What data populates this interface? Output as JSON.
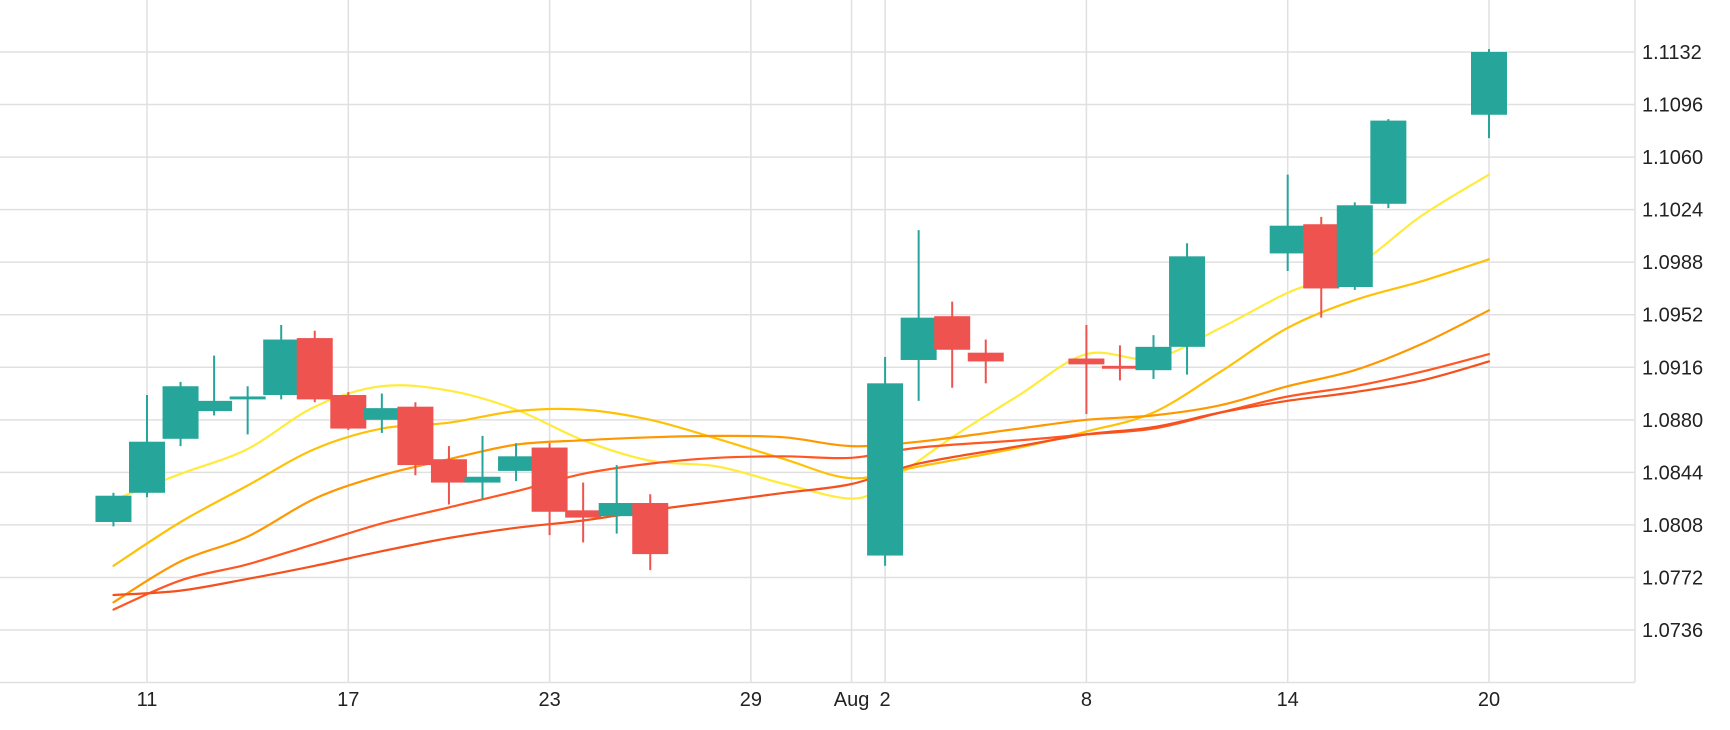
{
  "colors": {
    "up": "#26a69a",
    "down": "#ef5350",
    "grid": "#e0e0e0",
    "background": "#ffffff",
    "text": "#222222",
    "ma_colors": [
      "#ffeb3b",
      "#ffc107",
      "#ff9800",
      "#ff5722",
      "#f4511e"
    ]
  },
  "chart_data": {
    "type": "candlestick",
    "title": "",
    "xlabel": "",
    "ylabel": "",
    "ylim": [
      1.07,
      1.1157
    ],
    "grid": true,
    "legend": "none",
    "y_ticks": [
      "1.0736",
      "1.0772",
      "1.0808",
      "1.0844",
      "1.0880",
      "1.0916",
      "1.0952",
      "1.0988",
      "1.1024",
      "1.1060",
      "1.1096",
      "1.1132"
    ],
    "x_ticks": [
      {
        "label": "11",
        "date": "2023-07-11"
      },
      {
        "label": "17",
        "date": "2023-07-17"
      },
      {
        "label": "23",
        "date": "2023-07-23"
      },
      {
        "label": "29",
        "date": "2023-07-29"
      },
      {
        "label": "Aug",
        "date": "2023-08-01"
      },
      {
        "label": "2",
        "date": "2023-08-02"
      },
      {
        "label": "8",
        "date": "2023-08-08"
      },
      {
        "label": "14",
        "date": "2023-08-14"
      },
      {
        "label": "20",
        "date": "2023-08-20"
      }
    ],
    "candles": [
      {
        "date": "2023-07-10",
        "open": 1.081,
        "high": 1.083,
        "low": 1.0807,
        "close": 1.0828
      },
      {
        "date": "2023-07-11",
        "open": 1.083,
        "high": 1.0897,
        "low": 1.0827,
        "close": 1.0865
      },
      {
        "date": "2023-07-12",
        "open": 1.0867,
        "high": 1.0906,
        "low": 1.0862,
        "close": 1.0903
      },
      {
        "date": "2023-07-13",
        "open": 1.0886,
        "high": 1.0924,
        "low": 1.0883,
        "close": 1.0893
      },
      {
        "date": "2023-07-14",
        "open": 1.0894,
        "high": 1.0903,
        "low": 1.087,
        "close": 1.0896
      },
      {
        "date": "2023-07-15",
        "open": 1.0897,
        "high": 1.0945,
        "low": 1.0894,
        "close": 1.0935
      },
      {
        "date": "2023-07-16",
        "open": 1.0936,
        "high": 1.0941,
        "low": 1.0892,
        "close": 1.0894
      },
      {
        "date": "2023-07-17",
        "open": 1.0897,
        "high": 1.0899,
        "low": 1.0873,
        "close": 1.0874
      },
      {
        "date": "2023-07-18",
        "open": 1.088,
        "high": 1.0898,
        "low": 1.0871,
        "close": 1.0888
      },
      {
        "date": "2023-07-19",
        "open": 1.0889,
        "high": 1.0892,
        "low": 1.0842,
        "close": 1.0849
      },
      {
        "date": "2023-07-20",
        "open": 1.0853,
        "high": 1.0862,
        "low": 1.0822,
        "close": 1.0837
      },
      {
        "date": "2023-07-21",
        "open": 1.0837,
        "high": 1.0869,
        "low": 1.0826,
        "close": 1.0841
      },
      {
        "date": "2023-07-22",
        "open": 1.0845,
        "high": 1.0864,
        "low": 1.0838,
        "close": 1.0855
      },
      {
        "date": "2023-07-23",
        "open": 1.0861,
        "high": 1.0864,
        "low": 1.0801,
        "close": 1.0817
      },
      {
        "date": "2023-07-24",
        "open": 1.0818,
        "high": 1.0837,
        "low": 1.0796,
        "close": 1.0813
      },
      {
        "date": "2023-07-25",
        "open": 1.0814,
        "high": 1.0849,
        "low": 1.0802,
        "close": 1.0823
      },
      {
        "date": "2023-07-26",
        "open": 1.0823,
        "high": 1.0829,
        "low": 1.0777,
        "close": 1.0788
      },
      {
        "date": "2023-08-02",
        "open": 1.0787,
        "high": 1.0923,
        "low": 1.078,
        "close": 1.0905
      },
      {
        "date": "2023-08-03",
        "open": 1.0921,
        "high": 1.101,
        "low": 1.0893,
        "close": 1.095
      },
      {
        "date": "2023-08-04",
        "open": 1.0951,
        "high": 1.0961,
        "low": 1.0902,
        "close": 1.0928
      },
      {
        "date": "2023-08-05",
        "open": 1.0926,
        "high": 1.0935,
        "low": 1.0905,
        "close": 1.092
      },
      {
        "date": "2023-08-08",
        "open": 1.0922,
        "high": 1.0945,
        "low": 1.0884,
        "close": 1.0918
      },
      {
        "date": "2023-08-09",
        "open": 1.0917,
        "high": 1.0931,
        "low": 1.0907,
        "close": 1.0915
      },
      {
        "date": "2023-08-10",
        "open": 1.0914,
        "high": 1.0938,
        "low": 1.0908,
        "close": 1.093
      },
      {
        "date": "2023-08-11",
        "open": 1.093,
        "high": 1.1001,
        "low": 1.0911,
        "close": 1.0992
      },
      {
        "date": "2023-08-14",
        "open": 1.0994,
        "high": 1.1048,
        "low": 1.0982,
        "close": 1.1013
      },
      {
        "date": "2023-08-15",
        "open": 1.1014,
        "high": 1.1019,
        "low": 1.095,
        "close": 1.097
      },
      {
        "date": "2023-08-16",
        "open": 1.0971,
        "high": 1.1029,
        "low": 1.0969,
        "close": 1.1027
      },
      {
        "date": "2023-08-17",
        "open": 1.1028,
        "high": 1.1086,
        "low": 1.1025,
        "close": 1.1085
      },
      {
        "date": "2023-08-20",
        "open": 1.1089,
        "high": 1.1134,
        "low": 1.1073,
        "close": 1.1132
      }
    ],
    "moving_averages": [
      {
        "color": "#ffeb3b",
        "points": [
          [
            "2023-07-10",
            1.0825
          ],
          [
            "2023-07-12",
            1.0843
          ],
          [
            "2023-07-14",
            1.086
          ],
          [
            "2023-07-16",
            1.0889
          ],
          [
            "2023-07-18",
            1.0903
          ],
          [
            "2023-07-20",
            1.09
          ],
          [
            "2023-07-22",
            1.0887
          ],
          [
            "2023-07-24",
            1.0866
          ],
          [
            "2023-07-26",
            1.0852
          ],
          [
            "2023-07-28",
            1.0848
          ],
          [
            "2023-07-30",
            1.0836
          ],
          [
            "2023-08-01",
            1.0826
          ],
          [
            "2023-08-02",
            1.0836
          ],
          [
            "2023-08-04",
            1.0868
          ],
          [
            "2023-08-06",
            1.0897
          ],
          [
            "2023-08-08",
            1.0925
          ],
          [
            "2023-08-10",
            1.0922
          ],
          [
            "2023-08-12",
            1.0943
          ],
          [
            "2023-08-14",
            1.0967
          ],
          [
            "2023-08-16",
            1.0985
          ],
          [
            "2023-08-18",
            1.102
          ],
          [
            "2023-08-20",
            1.1048
          ]
        ]
      },
      {
        "color": "#ffc107",
        "points": [
          [
            "2023-07-10",
            1.078
          ],
          [
            "2023-07-12",
            1.081
          ],
          [
            "2023-07-14",
            1.0835
          ],
          [
            "2023-07-16",
            1.086
          ],
          [
            "2023-07-18",
            1.0874
          ],
          [
            "2023-07-20",
            1.0878
          ],
          [
            "2023-07-22",
            1.0886
          ],
          [
            "2023-07-24",
            1.0887
          ],
          [
            "2023-07-26",
            1.088
          ],
          [
            "2023-07-28",
            1.0867
          ],
          [
            "2023-07-30",
            1.0853
          ],
          [
            "2023-08-01",
            1.084
          ],
          [
            "2023-08-03",
            1.0848
          ],
          [
            "2023-08-06",
            1.0861
          ],
          [
            "2023-08-08",
            1.0872
          ],
          [
            "2023-08-10",
            1.0885
          ],
          [
            "2023-08-12",
            1.0913
          ],
          [
            "2023-08-14",
            1.0943
          ],
          [
            "2023-08-16",
            1.0962
          ],
          [
            "2023-08-18",
            1.0975
          ],
          [
            "2023-08-20",
            1.099
          ]
        ]
      },
      {
        "color": "#ff9800",
        "points": [
          [
            "2023-07-10",
            1.0755
          ],
          [
            "2023-07-12",
            1.0783
          ],
          [
            "2023-07-14",
            1.08
          ],
          [
            "2023-07-16",
            1.0826
          ],
          [
            "2023-07-18",
            1.0842
          ],
          [
            "2023-07-20",
            1.0853
          ],
          [
            "2023-07-22",
            1.0863
          ],
          [
            "2023-07-24",
            1.0866
          ],
          [
            "2023-07-26",
            1.0868
          ],
          [
            "2023-07-28",
            1.0869
          ],
          [
            "2023-07-30",
            1.0868
          ],
          [
            "2023-08-01",
            1.0862
          ],
          [
            "2023-08-03",
            1.0865
          ],
          [
            "2023-08-06",
            1.0874
          ],
          [
            "2023-08-08",
            1.088
          ],
          [
            "2023-08-10",
            1.0883
          ],
          [
            "2023-08-12",
            1.089
          ],
          [
            "2023-08-14",
            1.0903
          ],
          [
            "2023-08-16",
            1.0914
          ],
          [
            "2023-08-18",
            1.0932
          ],
          [
            "2023-08-20",
            1.0955
          ]
        ]
      },
      {
        "color": "#ff5722",
        "points": [
          [
            "2023-07-10",
            1.075
          ],
          [
            "2023-07-12",
            1.077
          ],
          [
            "2023-07-14",
            1.0781
          ],
          [
            "2023-07-16",
            1.0795
          ],
          [
            "2023-07-18",
            1.0809
          ],
          [
            "2023-07-20",
            1.082
          ],
          [
            "2023-07-22",
            1.0831
          ],
          [
            "2023-07-24",
            1.0843
          ],
          [
            "2023-07-26",
            1.085
          ],
          [
            "2023-07-28",
            1.0854
          ],
          [
            "2023-07-30",
            1.0855
          ],
          [
            "2023-08-01",
            1.0854
          ],
          [
            "2023-08-03",
            1.0861
          ],
          [
            "2023-08-06",
            1.0866
          ],
          [
            "2023-08-08",
            1.087
          ],
          [
            "2023-08-10",
            1.0874
          ],
          [
            "2023-08-12",
            1.0885
          ],
          [
            "2023-08-14",
            1.0896
          ],
          [
            "2023-08-16",
            1.0903
          ],
          [
            "2023-08-18",
            1.0913
          ],
          [
            "2023-08-20",
            1.0925
          ]
        ]
      },
      {
        "color": "#f4511e",
        "points": [
          [
            "2023-07-10",
            1.076
          ],
          [
            "2023-07-12",
            1.0763
          ],
          [
            "2023-07-14",
            1.0771
          ],
          [
            "2023-07-16",
            1.078
          ],
          [
            "2023-07-18",
            1.079
          ],
          [
            "2023-07-20",
            1.0799
          ],
          [
            "2023-07-22",
            1.0806
          ],
          [
            "2023-07-24",
            1.0811
          ],
          [
            "2023-07-26",
            1.0818
          ],
          [
            "2023-07-28",
            1.0824
          ],
          [
            "2023-07-30",
            1.083
          ],
          [
            "2023-08-01",
            1.0836
          ],
          [
            "2023-08-03",
            1.085
          ],
          [
            "2023-08-06",
            1.0862
          ],
          [
            "2023-08-08",
            1.087
          ],
          [
            "2023-08-10",
            1.0875
          ],
          [
            "2023-08-12",
            1.0885
          ],
          [
            "2023-08-14",
            1.0893
          ],
          [
            "2023-08-16",
            1.0899
          ],
          [
            "2023-08-18",
            1.0907
          ],
          [
            "2023-08-20",
            1.092
          ]
        ]
      }
    ]
  }
}
